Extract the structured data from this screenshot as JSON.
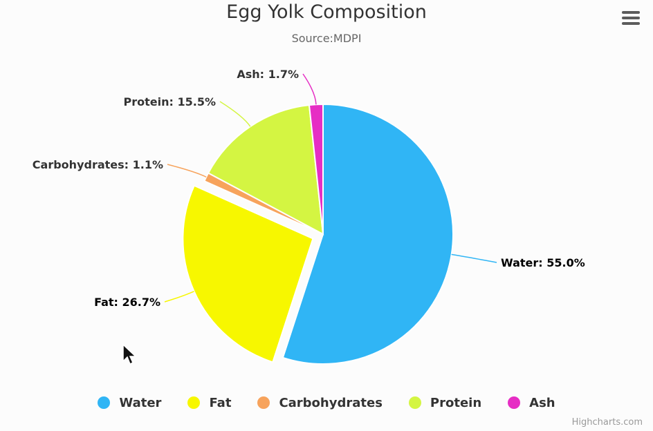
{
  "chart_data": {
    "type": "pie",
    "title": "Egg Yolk Composition",
    "subtitle": "Source:MDPI",
    "slices": [
      {
        "name": "Water",
        "value": 55.0,
        "label": "Water: 55.0%",
        "color": "#30b5f5",
        "sliced": false
      },
      {
        "name": "Fat",
        "value": 26.7,
        "label": "Fat: 26.7%",
        "color": "#f7f700",
        "sliced": true
      },
      {
        "name": "Carbohydrates",
        "value": 1.1,
        "label": "Carbohydrates: 1.1%",
        "color": "#f7a35c",
        "sliced": false
      },
      {
        "name": "Protein",
        "value": 15.5,
        "label": "Protein: 15.5%",
        "color": "#d4f542",
        "sliced": false
      },
      {
        "name": "Ash",
        "value": 1.7,
        "label": "Ash: 1.7%",
        "color": "#e62ec4",
        "sliced": false
      }
    ],
    "legend_position": "bottom-center"
  },
  "credits": "Highcharts.com",
  "icons": {
    "menu": "hamburger-menu-icon",
    "cursor": "mouse-pointer-icon"
  }
}
